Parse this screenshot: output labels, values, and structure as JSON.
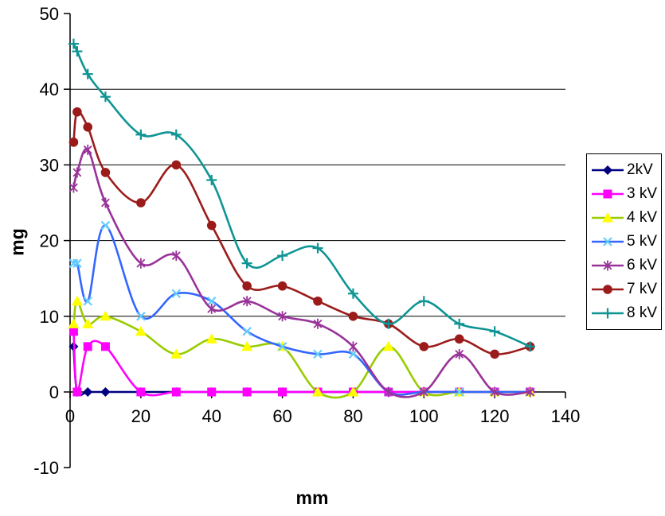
{
  "chart_data": {
    "type": "line",
    "smoothed": true,
    "xlabel": "mm",
    "ylabel": "mg",
    "xlim": [
      0,
      140
    ],
    "ylim": [
      -10,
      50
    ],
    "x_ticks": [
      0,
      20,
      40,
      60,
      80,
      100,
      120,
      140
    ],
    "y_ticks": [
      -10,
      0,
      10,
      20,
      30,
      40,
      50
    ],
    "gridlines": "horizontal-at-10-20-30-40",
    "legend_position": "right",
    "axis_color": "#000000",
    "background_color": "#ffffff",
    "x": [
      1,
      2,
      5,
      10,
      20,
      30,
      40,
      50,
      60,
      70,
      80,
      90,
      100,
      110,
      120,
      130
    ],
    "series": [
      {
        "name": "2kV",
        "marker": "diamond",
        "line_color": "#000080",
        "marker_color": "#000080",
        "values": [
          6,
          0,
          0,
          0,
          0,
          0,
          0,
          0,
          0,
          0,
          0,
          0,
          0,
          0,
          0,
          0
        ]
      },
      {
        "name": "3 kV",
        "marker": "square",
        "line_color": "#FF00FF",
        "marker_color": "#FF00FF",
        "values": [
          8,
          0,
          6,
          6,
          0,
          0,
          0,
          0,
          0,
          0,
          0,
          0,
          0,
          0,
          0,
          0
        ]
      },
      {
        "name": "4 kV",
        "marker": "triangle",
        "line_color": "#99CC00",
        "marker_color": "#FFFF00",
        "values": [
          9,
          12,
          9,
          10,
          8,
          5,
          7,
          6,
          6,
          0,
          0,
          6,
          0,
          0,
          0,
          0
        ]
      },
      {
        "name": "5 kV",
        "marker": "x",
        "line_color": "#3366FF",
        "marker_color": "#66CCFF",
        "values": [
          17,
          17,
          12,
          22,
          10,
          13,
          12,
          8,
          6,
          5,
          5,
          0,
          0,
          0,
          0,
          0
        ]
      },
      {
        "name": "6 kV",
        "marker": "asterisk",
        "line_color": "#993399",
        "marker_color": "#993399",
        "values": [
          27,
          29,
          32,
          25,
          17,
          18,
          11,
          12,
          10,
          9,
          6,
          0,
          0,
          5,
          0,
          0
        ]
      },
      {
        "name": "7 kV",
        "marker": "circle",
        "line_color": "#9B1B1B",
        "marker_color": "#9B1B1B",
        "values": [
          33,
          37,
          35,
          29,
          25,
          30,
          22,
          14,
          14,
          12,
          10,
          9,
          6,
          7,
          5,
          6
        ]
      },
      {
        "name": "8 kV",
        "marker": "plus",
        "line_color": "#0F9494",
        "marker_color": "#0F9494",
        "values": [
          46,
          45,
          42,
          39,
          34,
          34,
          28,
          17,
          18,
          19,
          13,
          9,
          12,
          9,
          8,
          6
        ]
      }
    ]
  }
}
